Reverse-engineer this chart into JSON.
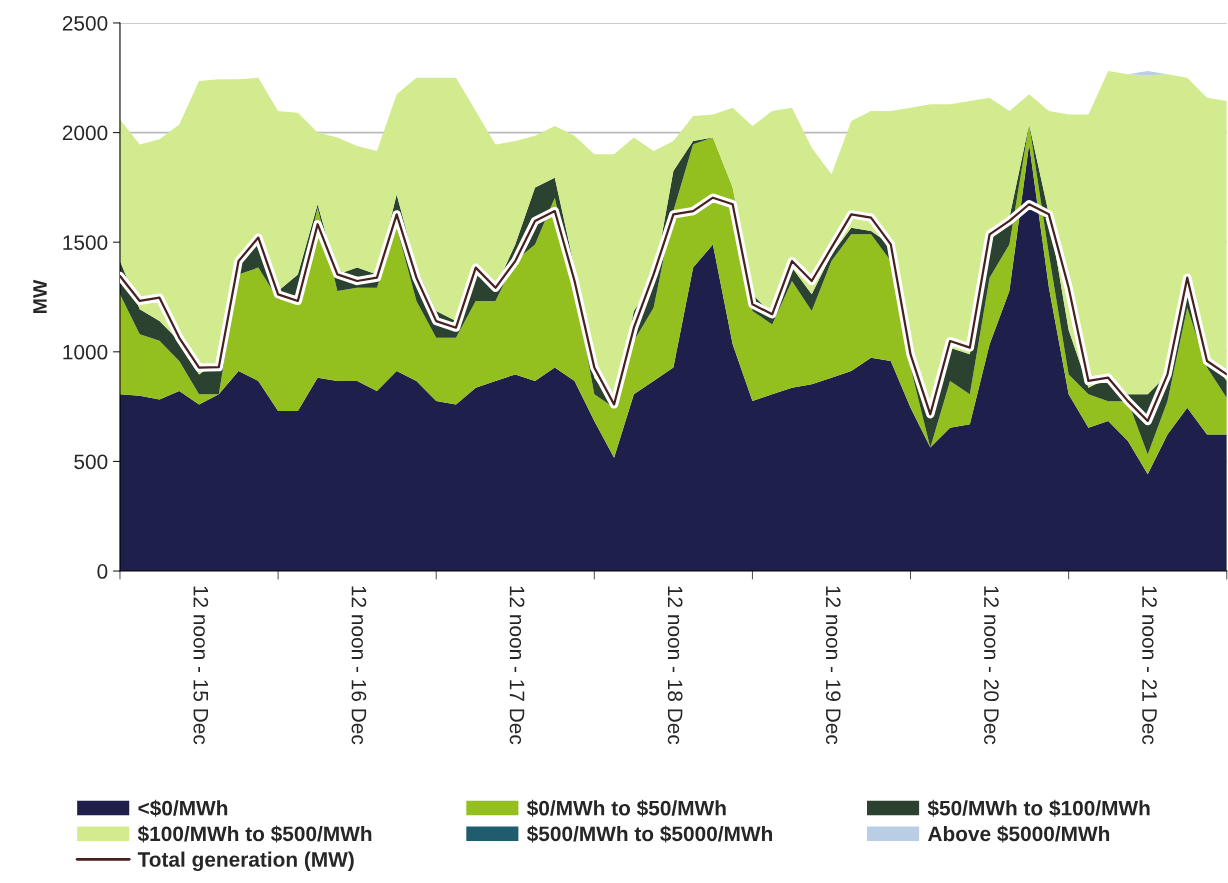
{
  "chart_data": {
    "type": "area",
    "stacked": true,
    "ylabel": "MW",
    "categories": [
      null,
      null,
      null,
      null,
      "12 noon - 15 Dec",
      null,
      null,
      null,
      null,
      null,
      null,
      null,
      "12 noon - 16 Dec",
      null,
      null,
      null,
      null,
      null,
      null,
      null,
      "12 noon - 17 Dec",
      null,
      null,
      null,
      null,
      null,
      null,
      null,
      "12 noon - 18 Dec",
      null,
      null,
      null,
      null,
      null,
      null,
      null,
      "12 noon - 19 Dec",
      null,
      null,
      null,
      null,
      null,
      null,
      null,
      "12 noon - 20 Dec",
      null,
      null,
      null,
      null,
      null,
      null,
      null,
      "12 noon - 21 Dec",
      null,
      null,
      null,
      null
    ],
    "series": [
      {
        "name": "<$0/MWh",
        "color": "#1f1f4b",
        "values": [
          806,
          800,
          783,
          821,
          760,
          806,
          912,
          867,
          730,
          730,
          882,
          867,
          867,
          821,
          912,
          867,
          776,
          760,
          836,
          867,
          897,
          867,
          928,
          867,
          684,
          517,
          806,
          867,
          928,
          1384,
          1490,
          1034,
          776,
          806,
          836,
          852,
          882,
          912,
          973,
          958,
          745,
          563,
          654,
          669,
          1034,
          1277,
          1947,
          1293,
          806,
          654,
          684,
          593,
          441,
          623,
          745,
          623,
          623
        ]
      },
      {
        "name": "$0/MWh to $50/MWh",
        "color": "#93c01f",
        "values": [
          456,
          280,
          267,
          137,
          46,
          0,
          441,
          517,
          509,
          532,
          776,
          410,
          425,
          471,
          654,
          365,
          288,
          304,
          396,
          365,
          517,
          623,
          775,
          425,
          122,
          228,
          243,
          334,
          714,
          563,
          487,
          715,
          410,
          319,
          487,
          334,
          532,
          624,
          563,
          456,
          183,
          0,
          213,
          137,
          304,
          213,
          91,
          152,
          91,
          152,
          91,
          182,
          91,
          152,
          456,
          305,
          166
        ]
      },
      {
        "name": "$50/MWh to $100/MWh",
        "color": "#2b4230",
        "values": [
          152,
          114,
          90,
          91,
          91,
          154,
          61,
          121,
          38,
          91,
          15,
          76,
          92,
          61,
          152,
          152,
          122,
          76,
          121,
          60,
          76,
          259,
          91,
          92,
          76,
          15,
          137,
          122,
          183,
          15,
          0,
          0,
          76,
          46,
          61,
          76,
          31,
          30,
          15,
          76,
          91,
          152,
          152,
          183,
          198,
          122,
          0,
          182,
          203,
          30,
          107,
          31,
          274,
          122,
          152,
          61,
          78
        ]
      },
      {
        "name": "$100/MWh to $500/MWh",
        "color": "#d3eb8f",
        "values": [
          646,
          752,
          829,
          988,
          1338,
          1283,
          829,
          745,
          821,
          737,
          327,
          624,
          555,
          563,
          457,
          866,
          1064,
          1110,
          745,
          654,
          471,
          236,
          236,
          601,
          1019,
          1141,
          791,
          593,
          136,
          114,
          106,
          364,
          768,
          927,
          729,
          669,
          365,
          487,
          547,
          608,
          1094,
          1414,
          1110,
          1155,
          623,
          486,
          137,
          471,
          983,
          1247,
          1399,
          1460,
          1455,
          1369,
          897,
          1170,
          1277
        ]
      },
      {
        "name": "$500/MWh to $5000/MWh",
        "color": "#1f5c6e",
        "values": [
          null,
          null,
          null,
          null,
          null,
          null,
          null,
          null,
          null,
          null,
          null,
          null,
          null,
          null,
          null,
          null,
          null,
          null,
          null,
          null,
          null,
          null,
          null,
          null,
          null,
          null,
          null,
          null,
          null,
          null,
          null,
          null,
          null,
          null,
          null,
          null,
          null,
          null,
          null,
          null,
          null,
          null,
          null,
          null,
          null,
          null,
          null,
          null,
          null,
          null,
          null,
          null,
          null,
          null,
          null,
          null,
          null
        ]
      },
      {
        "name": "Above $5000/MWh",
        "color": "#b9cde5",
        "values": [
          0,
          0,
          0,
          0,
          0,
          0,
          0,
          0,
          0,
          0,
          0,
          0,
          0,
          0,
          0,
          0,
          0,
          0,
          0,
          0,
          0,
          0,
          0,
          0,
          0,
          0,
          0,
          0,
          0,
          0,
          0,
          0,
          0,
          0,
          0,
          0,
          0,
          0,
          0,
          0,
          0,
          0,
          0,
          0,
          0,
          0,
          0,
          0,
          0,
          0,
          0,
          0,
          20,
          0,
          0,
          0,
          0
        ]
      },
      {
        "name": "Total generation (MW)",
        "type": "line",
        "color": "#4a1f1f",
        "values": [
          1346,
          1232,
          1247,
          1064,
          928,
          930,
          1414,
          1521,
          1262,
          1232,
          1582,
          1353,
          1323,
          1338,
          1627,
          1338,
          1140,
          1110,
          1384,
          1292,
          1414,
          1597,
          1642,
          1323,
          928,
          760,
          1110,
          1353,
          1627,
          1642,
          1703,
          1673,
          1217,
          1171,
          1414,
          1323,
          1475,
          1627,
          1612,
          1490,
          988,
          715,
          1049,
          1019,
          1536,
          1597,
          1673,
          1627,
          1292,
          867,
          882,
          775,
          684,
          897,
          1338,
          958,
          897
        ]
      }
    ],
    "ylim": [
      0,
      2500
    ],
    "yticks": [
      0,
      500,
      1000,
      1500,
      2000,
      2500
    ],
    "grid": "y",
    "legend": "bottom",
    "marker": "none",
    "line_style": "solid"
  }
}
